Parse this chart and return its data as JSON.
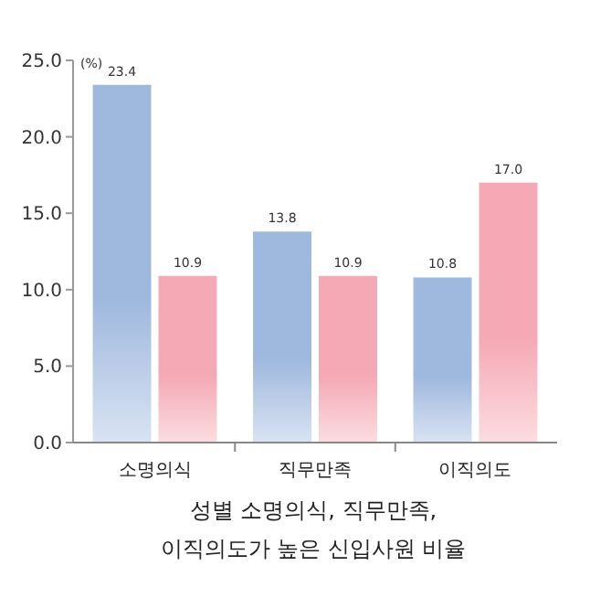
{
  "chart_data": {
    "type": "bar",
    "title": "성별 소명의식, 직무만족, 이직의도가 높은 신입사원 비율",
    "ylabel": "(%)",
    "categories": [
      "소명의식",
      "직무만족",
      "이직의도"
    ],
    "series": [
      {
        "color": "#9fb8de",
        "values": [
          23.4,
          13.8,
          10.8
        ],
        "value_labels": [
          "23.4",
          "13.8",
          "10.8"
        ]
      },
      {
        "color": "#f5a9b5",
        "values": [
          10.9,
          10.9,
          17.0
        ],
        "value_labels": [
          "10.9",
          "10.9",
          "17.0"
        ]
      }
    ],
    "ylim": [
      0,
      25
    ],
    "yticks": [
      {
        "value": 0,
        "label": "0.0"
      },
      {
        "value": 5,
        "label": "5.0"
      },
      {
        "value": 10,
        "label": "10.0"
      },
      {
        "value": 15,
        "label": "15.0"
      },
      {
        "value": 20,
        "label": "20.0"
      },
      {
        "value": 25,
        "label": "25.0"
      }
    ],
    "grid": false
  }
}
